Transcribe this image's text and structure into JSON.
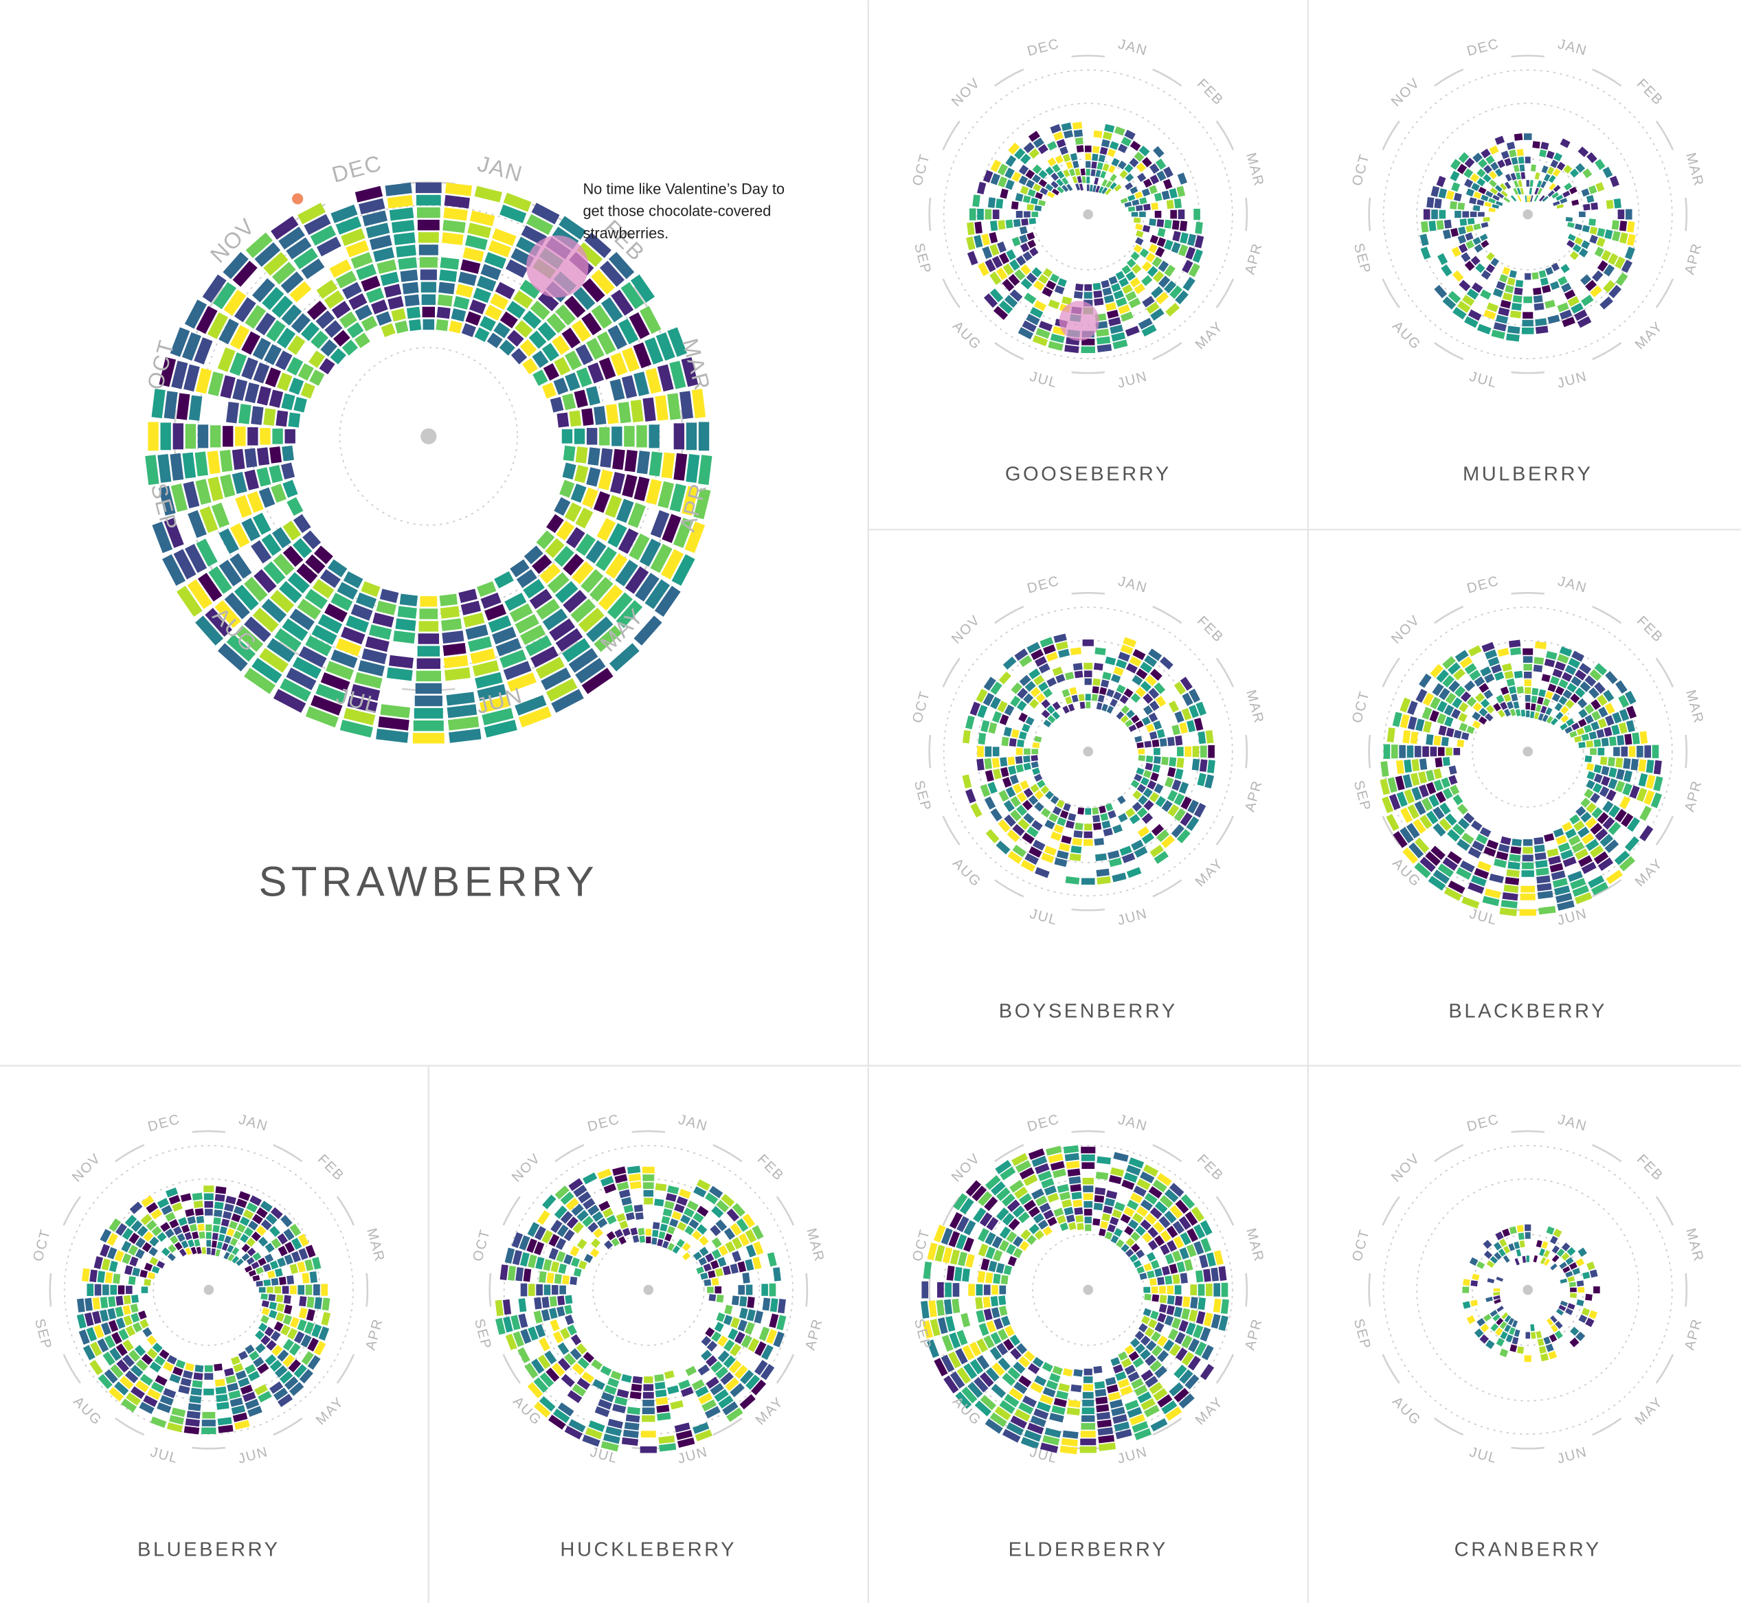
{
  "months": [
    "JAN",
    "FEB",
    "MAR",
    "APR",
    "MAY",
    "JUN",
    "JUL",
    "AUG",
    "SEP",
    "OCT",
    "NOV",
    "DEC"
  ],
  "panels": [
    {
      "title": "STRAWBERRY"
    },
    {
      "title": "GOOSEBERRY"
    },
    {
      "title": "MULBERRY"
    },
    {
      "title": "BOYSENBERRY"
    },
    {
      "title": "BLACKBERRY"
    },
    {
      "title": "BLUEBERRY"
    },
    {
      "title": "HUCKLEBERRY"
    },
    {
      "title": "ELDERBERRY"
    },
    {
      "title": "CRANBERRY"
    }
  ],
  "annotation": {
    "lines": [
      "No time like Valentine’s Day to",
      "get those chocolate-covered",
      "strawberries."
    ]
  }
}
